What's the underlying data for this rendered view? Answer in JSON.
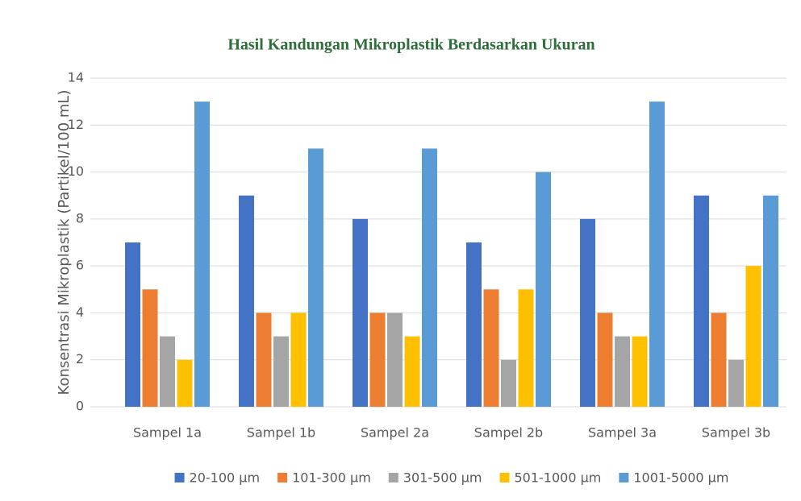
{
  "chart_data": {
    "type": "bar",
    "title": "Hasil Kandungan Mikroplastik Berdasarkan Ukuran",
    "y_label": "Konsentrasi  Mikroplastik (Partikel/100 mL)",
    "categories": [
      "Sampel 1a",
      "Sampel 1b",
      "Sampel 2a",
      "Sampel 2b",
      "Sampel 3a",
      "Sampel 3b"
    ],
    "series": [
      {
        "name": "20-100 µm",
        "color": "#4472c4",
        "values": [
          7,
          9,
          8,
          7,
          8,
          9
        ]
      },
      {
        "name": "101-300 µm",
        "color": "#ed7d31",
        "values": [
          5,
          4,
          4,
          5,
          4,
          4
        ]
      },
      {
        "name": "301-500 µm",
        "color": "#a5a5a5",
        "values": [
          3,
          3,
          4,
          2,
          3,
          2
        ]
      },
      {
        "name": "501-1000 µm",
        "color": "#ffc000",
        "values": [
          2,
          4,
          3,
          5,
          3,
          6
        ]
      },
      {
        "name": "1001-5000 µm",
        "color": "#5b9bd5",
        "values": [
          13,
          11,
          11,
          10,
          13,
          9
        ]
      }
    ],
    "ylim": [
      0,
      14
    ],
    "yticks": [
      0,
      2,
      4,
      6,
      8,
      10,
      12,
      14
    ],
    "grid": true,
    "legend": "bottom"
  }
}
